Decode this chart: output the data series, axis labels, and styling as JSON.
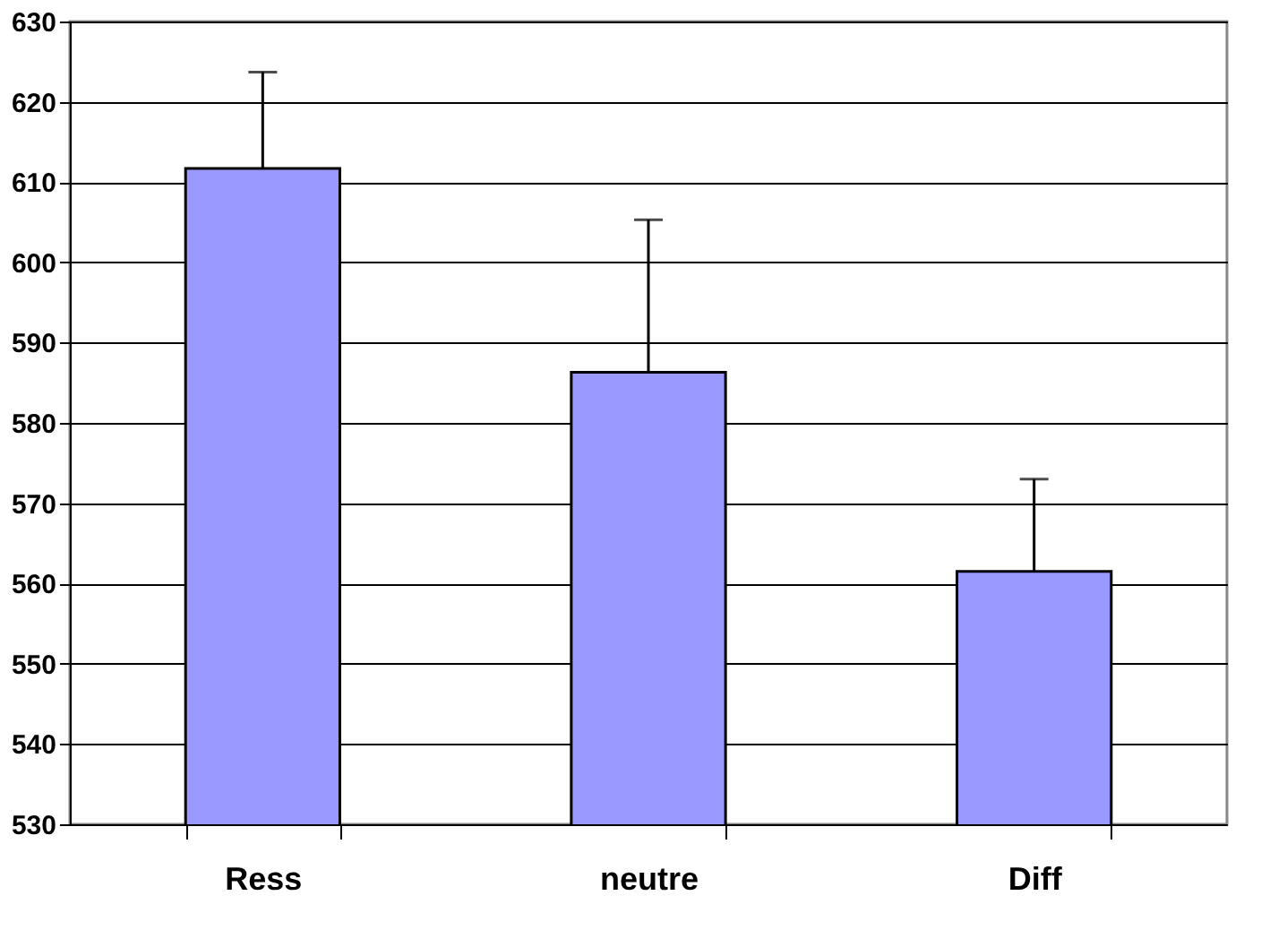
{
  "chart_data": {
    "type": "bar",
    "categories": [
      "Ress",
      "neutre",
      "Diff"
    ],
    "values": [
      611.7,
      586.3,
      561.5
    ],
    "errors": [
      12,
      19,
      11.5
    ],
    "color": "#9999ff",
    "ylim": [
      530,
      630
    ],
    "yticks": [
      530,
      540,
      550,
      560,
      570,
      580,
      590,
      600,
      610,
      620,
      630
    ],
    "grid": "y"
  }
}
